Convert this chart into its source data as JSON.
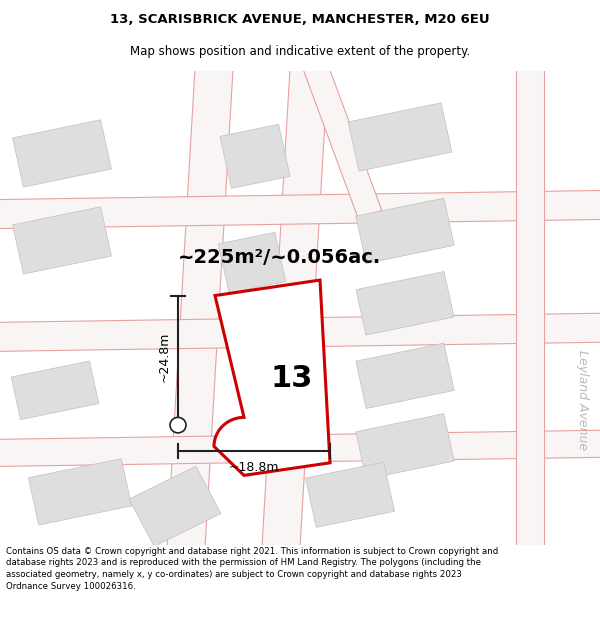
{
  "title_line1": "13, SCARISBRICK AVENUE, MANCHESTER, M20 6EU",
  "title_line2": "Map shows position and indicative extent of the property.",
  "area_label": "~225m²/~0.056ac.",
  "property_number": "13",
  "dim_height": "~24.8m",
  "dim_width": "~18.8m",
  "street_label": "Leyland Avenue",
  "footer_text": "Contains OS data © Crown copyright and database right 2021. This information is subject to Crown copyright and database rights 2023 and is reproduced with the permission of HM Land Registry. The polygons (including the associated geometry, namely x, y co-ordinates) are subject to Crown copyright and database rights 2023 Ordnance Survey 100026316.",
  "bg_color": "#ffffff",
  "map_bg": "#f2f2f2",
  "property_fill": "#ffffff",
  "property_edge": "#cc0000",
  "road_color": "#e8a0a0",
  "building_color": "#dedede",
  "building_edge": "#c0c0c0",
  "dim_color": "#222222",
  "title_fontsize": 9.5,
  "subtitle_fontsize": 8.5,
  "area_fontsize": 14,
  "number_fontsize": 22,
  "dim_fontsize": 9,
  "street_fontsize": 9,
  "footer_fontsize": 6.2
}
